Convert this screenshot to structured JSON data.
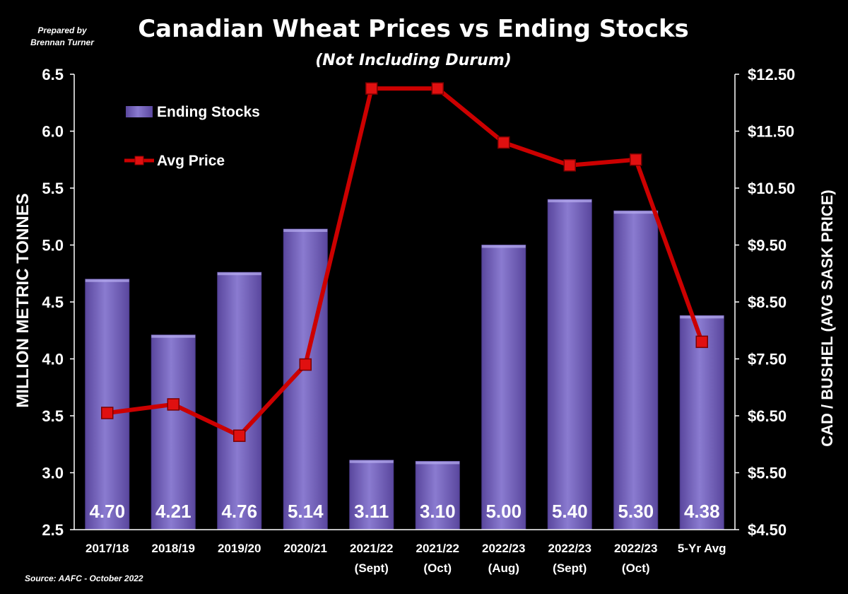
{
  "header": {
    "credit_line1": "Prepared by",
    "credit_line2": "Brennan Turner",
    "title": "Canadian Wheat Prices vs Ending Stocks",
    "subtitle": "(Not Including Durum)"
  },
  "footer": {
    "source": "Source: AAFC -  October 2022"
  },
  "legend": {
    "stocks": "Ending Stocks",
    "price": "Avg Price",
    "placement": "top-left"
  },
  "colors": {
    "bar": "#6f5bb5",
    "bar_light": "#8a7bd0",
    "line": "#cc0000",
    "marker": "#e01010",
    "axis": "#ffffff"
  },
  "chart_data": {
    "type": "bar",
    "categories": [
      [
        "2017/18"
      ],
      [
        "2018/19"
      ],
      [
        "2019/20"
      ],
      [
        "2020/21"
      ],
      [
        "2021/22",
        "(Sept)"
      ],
      [
        "2021/22",
        "(Oct)"
      ],
      [
        "2022/23",
        "(Aug)"
      ],
      [
        "2022/23",
        "(Sept)"
      ],
      [
        "2022/23",
        "(Oct)"
      ],
      [
        "5-Yr Avg"
      ]
    ],
    "series": [
      {
        "name": "Ending Stocks",
        "type": "bar",
        "axis": "left",
        "values": [
          4.7,
          4.21,
          4.76,
          5.14,
          3.11,
          3.1,
          5.0,
          5.4,
          5.3,
          4.38
        ],
        "labels": [
          "4.70",
          "4.21",
          "4.76",
          "5.14",
          "3.11",
          "3.10",
          "5.00",
          "5.40",
          "5.30",
          "4.38"
        ]
      },
      {
        "name": "Avg Price",
        "type": "line",
        "axis": "right",
        "values": [
          6.55,
          6.7,
          6.15,
          7.4,
          12.25,
          12.25,
          11.3,
          10.9,
          11.0,
          7.8
        ]
      }
    ],
    "ylabel": "MILLION METRIC TONNES",
    "y2label": "CAD / BUSHEL (AVG SASK PRICE)",
    "ylim": [
      2.5,
      6.5
    ],
    "y_ticks": [
      "2.5",
      "3.0",
      "3.5",
      "4.0",
      "4.5",
      "5.0",
      "5.5",
      "6.0",
      "6.5"
    ],
    "y2lim": [
      4.5,
      12.5
    ],
    "y2_ticks": [
      "$4.50",
      "$5.50",
      "$6.50",
      "$7.50",
      "$8.50",
      "$9.50",
      "$10.50",
      "$11.50",
      "$12.50"
    ],
    "grid": false,
    "legend_placement": "top-left"
  }
}
